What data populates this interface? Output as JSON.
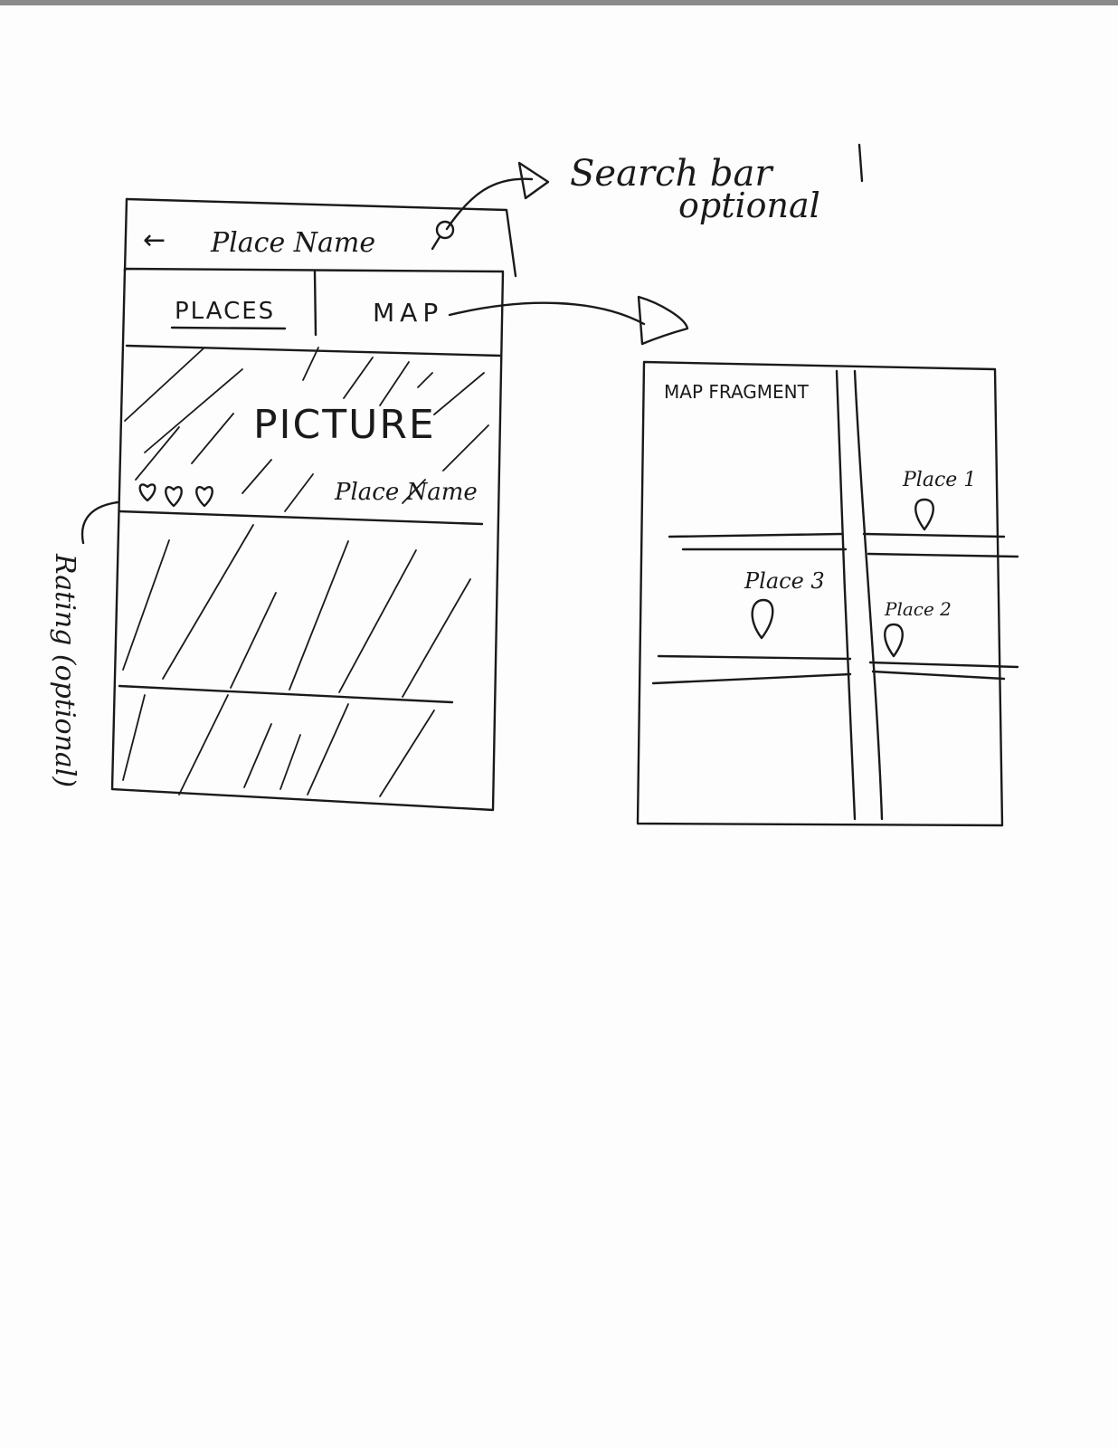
{
  "annotations": {
    "search_note_line1": "Search bar",
    "search_note_line2": "optional",
    "rating_note": "Rating (optional)"
  },
  "phone": {
    "back_icon": "←",
    "title": "Place Name",
    "search_icon": "search-icon",
    "tabs": [
      {
        "label": "PLACES",
        "active": true
      },
      {
        "label": "MAP",
        "active": false
      }
    ],
    "card": {
      "picture_label": "PICTURE",
      "place_name": "Place Name",
      "rating_icon": "heart-icon"
    }
  },
  "map": {
    "label": "MAP FRAGMENT",
    "places": [
      {
        "label": "Place 1"
      },
      {
        "label": "Place 2"
      },
      {
        "label": "Place 3"
      }
    ],
    "marker_icon": "map-pin-icon"
  }
}
